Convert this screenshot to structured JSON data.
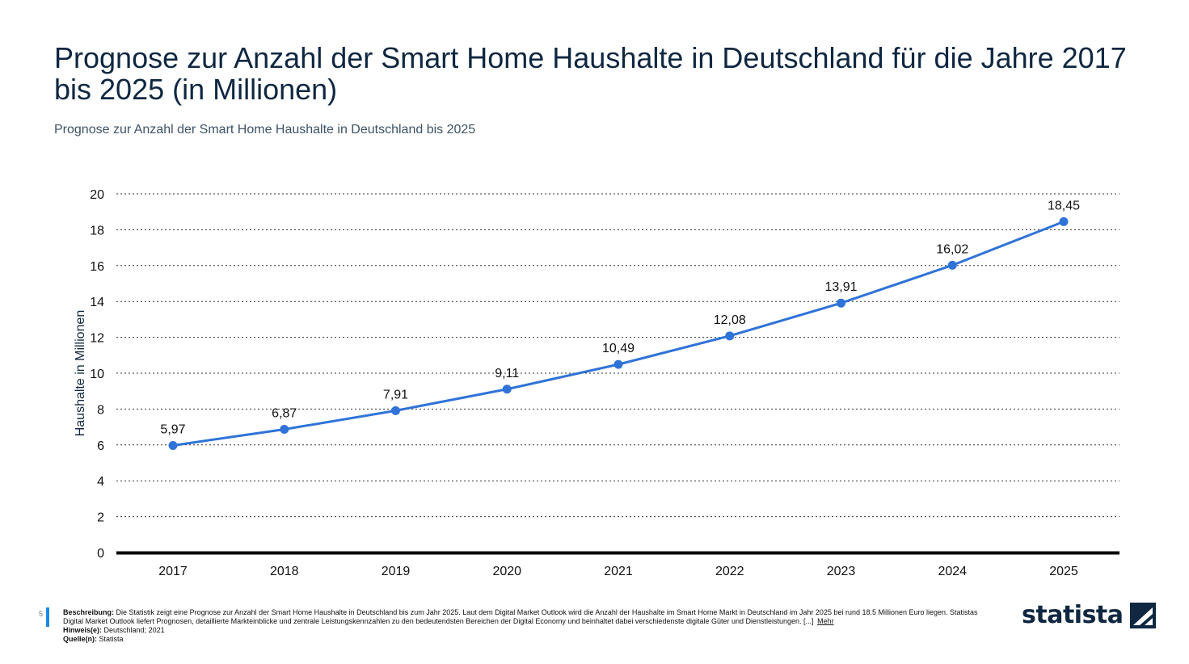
{
  "title": "Prognose zur Anzahl der Smart Home Haushalte in Deutschland für die Jahre 2017 bis 2025 (in Millionen)",
  "subtitle": "Prognose zur Anzahl der Smart Home Haushalte in Deutschland bis 2025",
  "colors": {
    "line": "#2f73d8",
    "title": "#0f2741",
    "accent": "#1e88e5"
  },
  "chart_data": {
    "type": "line",
    "x": [
      "2017",
      "2018",
      "2019",
      "2020",
      "2021",
      "2022",
      "2023",
      "2024",
      "2025"
    ],
    "series": [
      {
        "values": [
          5.97,
          6.87,
          7.91,
          9.11,
          10.49,
          12.08,
          13.91,
          16.02,
          18.45
        ]
      }
    ],
    "data_labels": [
      "5,97",
      "6,87",
      "7,91",
      "9,11",
      "10,49",
      "12,08",
      "13,91",
      "16,02",
      "18,45"
    ],
    "ylabel": "Haushalte in Millionen",
    "xlabel": "",
    "ylim": [
      0,
      20
    ],
    "yticks": [
      0,
      2,
      4,
      6,
      8,
      10,
      12,
      14,
      16,
      18,
      20
    ],
    "grid": true,
    "grid_style": "dotted"
  },
  "footer": {
    "page_number": "5",
    "description_label": "Beschreibung:",
    "description_text": "Die Statistik zeigt eine Prognose zur Anzahl der Smart Home Haushalte in Deutschland bis zum Jahr 2025. Laut dem Digital Market Outlook wird die Anzahl der Haushalte im Smart Home Markt in Deutschland im Jahr 2025 bei rund 18.5 Millionen Euro liegen. Statistas Digital Market Outlook liefert Prognosen, detaillierte Markteinblicke und zentrale Leistungskennzahlen zu den bedeutendsten Bereichen der Digital Economy und beinhaltet dabei verschiedenste digitale Güter und Dienstleistungen. [...]",
    "more_link": "Mehr",
    "notes_label": "Hinweis(e):",
    "notes_text": "Deutschland; 2021",
    "source_label": "Quelle(n):",
    "source_text": "Statista"
  },
  "logo": {
    "text": "statista",
    "icon": "statista-logo-icon"
  }
}
